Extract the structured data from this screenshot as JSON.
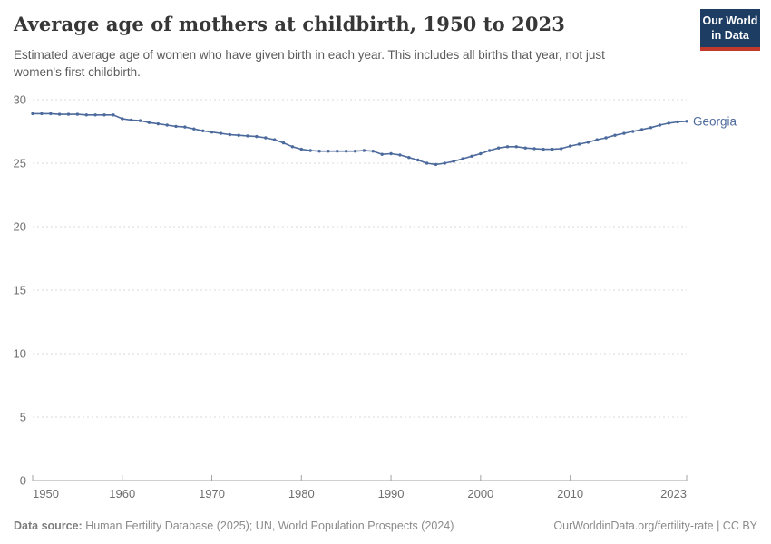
{
  "header": {
    "title": "Average age of mothers at childbirth, 1950 to 2023",
    "subtitle": "Estimated average age of women who have given birth in each year. This includes all births that year, not just women's first childbirth.",
    "logo": {
      "line1": "Our World",
      "line2": "in Data"
    }
  },
  "chart_data": {
    "type": "line",
    "title": "Average age of mothers at childbirth, 1950 to 2023",
    "xlabel": "",
    "ylabel": "",
    "ylim": [
      0,
      30
    ],
    "yticks": [
      0,
      5,
      10,
      15,
      20,
      25,
      30
    ],
    "xticks": [
      1950,
      1960,
      1970,
      1980,
      1990,
      2000,
      2010,
      2023
    ],
    "x_range": [
      1950,
      2023
    ],
    "grid": "horizontal-dashed",
    "legend_position": "end-of-line-label",
    "x": [
      1950,
      1951,
      1952,
      1953,
      1954,
      1955,
      1956,
      1957,
      1958,
      1959,
      1960,
      1961,
      1962,
      1963,
      1964,
      1965,
      1966,
      1967,
      1968,
      1969,
      1970,
      1971,
      1972,
      1973,
      1974,
      1975,
      1976,
      1977,
      1978,
      1979,
      1980,
      1981,
      1982,
      1983,
      1984,
      1985,
      1986,
      1987,
      1988,
      1989,
      1990,
      1991,
      1992,
      1993,
      1994,
      1995,
      1996,
      1997,
      1998,
      1999,
      2000,
      2001,
      2002,
      2003,
      2004,
      2005,
      2006,
      2007,
      2008,
      2009,
      2010,
      2011,
      2012,
      2013,
      2014,
      2015,
      2016,
      2017,
      2018,
      2019,
      2020,
      2021,
      2022,
      2023
    ],
    "series": [
      {
        "name": "Georgia",
        "color": "#4c6a9c",
        "values": [
          28.9,
          28.9,
          28.9,
          28.85,
          28.85,
          28.85,
          28.8,
          28.8,
          28.8,
          28.8,
          28.5,
          28.4,
          28.35,
          28.2,
          28.1,
          28.0,
          27.9,
          27.85,
          27.7,
          27.55,
          27.45,
          27.35,
          27.25,
          27.2,
          27.15,
          27.1,
          27.0,
          26.85,
          26.6,
          26.3,
          26.1,
          26.0,
          25.95,
          25.95,
          25.95,
          25.95,
          25.95,
          26.0,
          25.95,
          25.7,
          25.75,
          25.65,
          25.45,
          25.25,
          25.0,
          24.9,
          25.0,
          25.15,
          25.35,
          25.55,
          25.75,
          26.0,
          26.2,
          26.3,
          26.3,
          26.2,
          26.15,
          26.1,
          26.1,
          26.15,
          26.35,
          26.5,
          26.65,
          26.85,
          27.0,
          27.2,
          27.35,
          27.5,
          27.65,
          27.8,
          28.0,
          28.15,
          28.25,
          28.3
        ]
      }
    ]
  },
  "footer": {
    "source_label": "Data source:",
    "source_text": " Human Fertility Database (2025); UN, World Population Prospects (2024)",
    "link_text": "OurWorldinData.org/fertility-rate | CC BY"
  },
  "colors": {
    "line": "#4c6a9c",
    "entity_label": "#4c6a9c",
    "gridline": "#dadada",
    "axis": "#a3a3a3",
    "tick_label": "#6f6f6f",
    "logo_bg": "#1d3d63",
    "logo_red": "#c0392b"
  }
}
